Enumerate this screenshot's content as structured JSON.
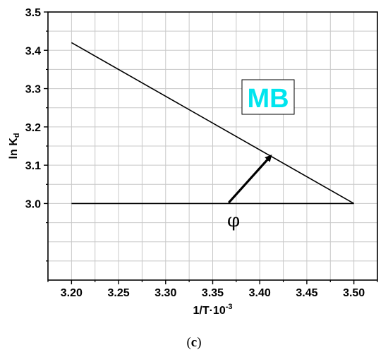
{
  "chart_data": {
    "type": "line",
    "xlabel": "1/T·10",
    "xlabel_sup": "-3",
    "ylabel": "ln K",
    "ylabel_sub": "d",
    "xlim": [
      3.175,
      3.525
    ],
    "ylim": [
      2.8,
      3.5
    ],
    "x_ticks": [
      3.2,
      3.25,
      3.3,
      3.35,
      3.4,
      3.45,
      3.5
    ],
    "x_tick_labels": [
      "3.20",
      "3.25",
      "3.30",
      "3.35",
      "3.40",
      "3.45",
      "3.50"
    ],
    "y_ticks": [
      3.0,
      3.1,
      3.2,
      3.3,
      3.4,
      3.5
    ],
    "y_tick_labels": [
      "3.0",
      "3.1",
      "3.2",
      "3.3",
      "3.4",
      "3.5"
    ],
    "grid": true,
    "series": [
      {
        "x": [
          3.2,
          3.5
        ],
        "y": [
          3.42,
          3.0
        ]
      },
      {
        "x": [
          3.2,
          3.5
        ],
        "y": [
          3.0,
          3.0
        ]
      }
    ],
    "annotations": {
      "box_label": "MB",
      "box_label_color": "#00e5ee",
      "angle_symbol": "φ",
      "arrow_from": [
        3.367,
        3.002
      ],
      "arrow_to": [
        3.412,
        3.125
      ]
    }
  },
  "caption": "(c)"
}
